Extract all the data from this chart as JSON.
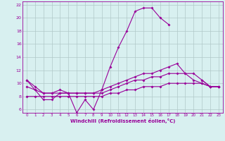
{
  "x": [
    0,
    1,
    2,
    3,
    4,
    5,
    6,
    7,
    8,
    9,
    10,
    11,
    12,
    13,
    14,
    15,
    16,
    17,
    18,
    19,
    20,
    21,
    22,
    23
  ],
  "line_main": [
    10.5,
    9.0,
    7.5,
    7.5,
    8.5,
    8.5,
    5.5,
    7.5,
    6.0,
    9.0,
    12.5,
    15.5,
    18.0,
    21.0,
    21.5,
    21.5,
    20.0,
    19.0,
    null,
    null,
    null,
    10.5,
    9.5,
    9.5
  ],
  "line_upper": [
    10.5,
    9.5,
    8.5,
    8.5,
    9.0,
    8.5,
    8.5,
    8.5,
    8.5,
    9.0,
    9.5,
    10.0,
    10.5,
    11.0,
    11.5,
    11.5,
    12.0,
    12.5,
    13.0,
    11.5,
    10.5,
    10.0,
    9.5,
    9.5
  ],
  "line_mid": [
    9.5,
    9.0,
    8.5,
    8.5,
    8.5,
    8.5,
    8.5,
    8.5,
    8.5,
    8.5,
    9.0,
    9.5,
    10.0,
    10.5,
    10.5,
    11.0,
    11.0,
    11.5,
    11.5,
    11.5,
    11.5,
    10.5,
    9.5,
    9.5
  ],
  "line_lower": [
    8.0,
    8.0,
    8.0,
    8.0,
    8.0,
    8.0,
    8.0,
    8.0,
    8.0,
    8.0,
    8.5,
    8.5,
    9.0,
    9.0,
    9.5,
    9.5,
    9.5,
    10.0,
    10.0,
    10.0,
    10.0,
    10.0,
    9.5,
    9.5
  ],
  "color": "#990099",
  "bg_color": "#d8f0f0",
  "grid_color": "#b0c8c8",
  "xlabel": "Windchill (Refroidissement éolien,°C)",
  "ylim": [
    5.5,
    22.5
  ],
  "xlim": [
    -0.5,
    23.5
  ],
  "yticks": [
    6,
    8,
    10,
    12,
    14,
    16,
    18,
    20,
    22
  ],
  "xticks": [
    0,
    1,
    2,
    3,
    4,
    5,
    6,
    7,
    8,
    9,
    10,
    11,
    12,
    13,
    14,
    15,
    16,
    17,
    18,
    19,
    20,
    21,
    22,
    23
  ]
}
